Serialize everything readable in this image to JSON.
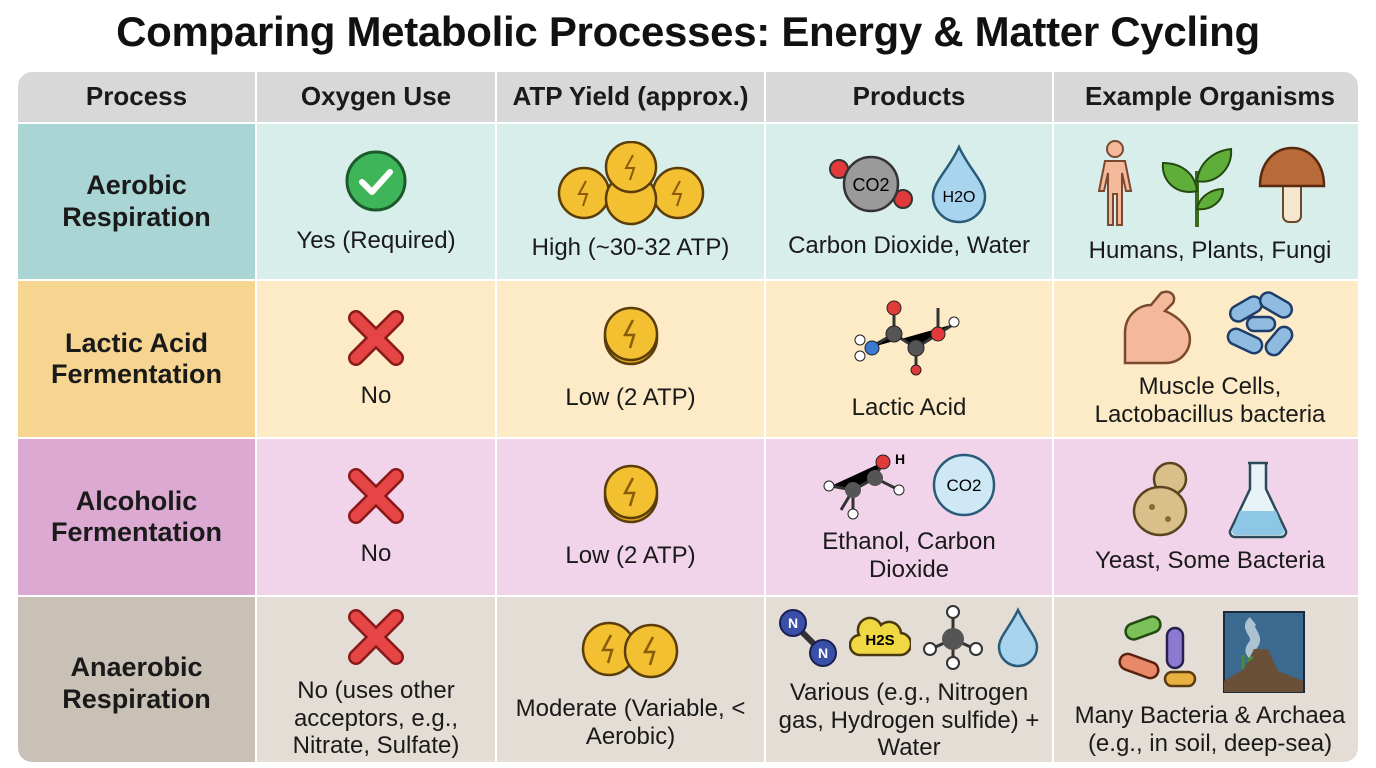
{
  "title": "Comparing Metabolic Processes: Energy & Matter Cycling",
  "headers": [
    "Process",
    "Oxygen Use",
    "ATP Yield (approx.)",
    "Products",
    "Example Organisms"
  ],
  "rows": [
    {
      "process": "Aerobic Respiration",
      "oxygen": "Yes (Required)",
      "oxygen_icon": "check-icon",
      "atp": "High (~30-32 ATP)",
      "atp_coins": 5,
      "products": "Carbon Dioxide, Water",
      "product_icons": [
        "co2-molecule-icon",
        "water-drop-icon"
      ],
      "product_labels": [
        "CO2",
        "H2O"
      ],
      "organisms": "Humans, Plants, Fungi",
      "organism_icons": [
        "human-icon",
        "plant-icon",
        "mushroom-icon"
      ]
    },
    {
      "process": "Lactic Acid Fermentation",
      "oxygen": "No",
      "oxygen_icon": "x-icon",
      "atp": "Low (2 ATP)",
      "atp_coins": 1,
      "products": "Lactic Acid",
      "product_icons": [
        "lactic-acid-molecule-icon"
      ],
      "organisms": "Muscle Cells, Lactobacillus bacteria",
      "organism_icons": [
        "muscle-arm-icon",
        "bacteria-icon"
      ]
    },
    {
      "process": "Alcoholic Fermentation",
      "oxygen": "No",
      "oxygen_icon": "x-icon",
      "atp": "Low (2 ATP)",
      "atp_coins": 1,
      "products": "Ethanol, Carbon Dioxide",
      "product_icons": [
        "ethanol-molecule-icon",
        "co2-bubble-icon"
      ],
      "product_labels": [
        "H",
        "CO2"
      ],
      "organisms": "Yeast, Some Bacteria",
      "organism_icons": [
        "yeast-icon",
        "flask-icon"
      ]
    },
    {
      "process": "Anaerobic Respiration",
      "oxygen": "No (uses other acceptors, e.g., Nitrate, Sulfate)",
      "oxygen_icon": "x-icon",
      "atp": "Moderate (Variable, < Aerobic)",
      "atp_coins": 2,
      "products": "Various (e.g., Nitrogen gas, Hydrogen sulfide) + Water",
      "product_icons": [
        "n2-molecule-icon",
        "h2s-cloud-icon",
        "methane-molecule-icon",
        "water-drop-icon"
      ],
      "product_labels": [
        "N",
        "N",
        "H2S"
      ],
      "organisms": "Many Bacteria & Archaea (e.g., in soil, deep-sea)",
      "organism_icons": [
        "bacteria-icon",
        "deep-sea-vent-icon"
      ]
    }
  ]
}
